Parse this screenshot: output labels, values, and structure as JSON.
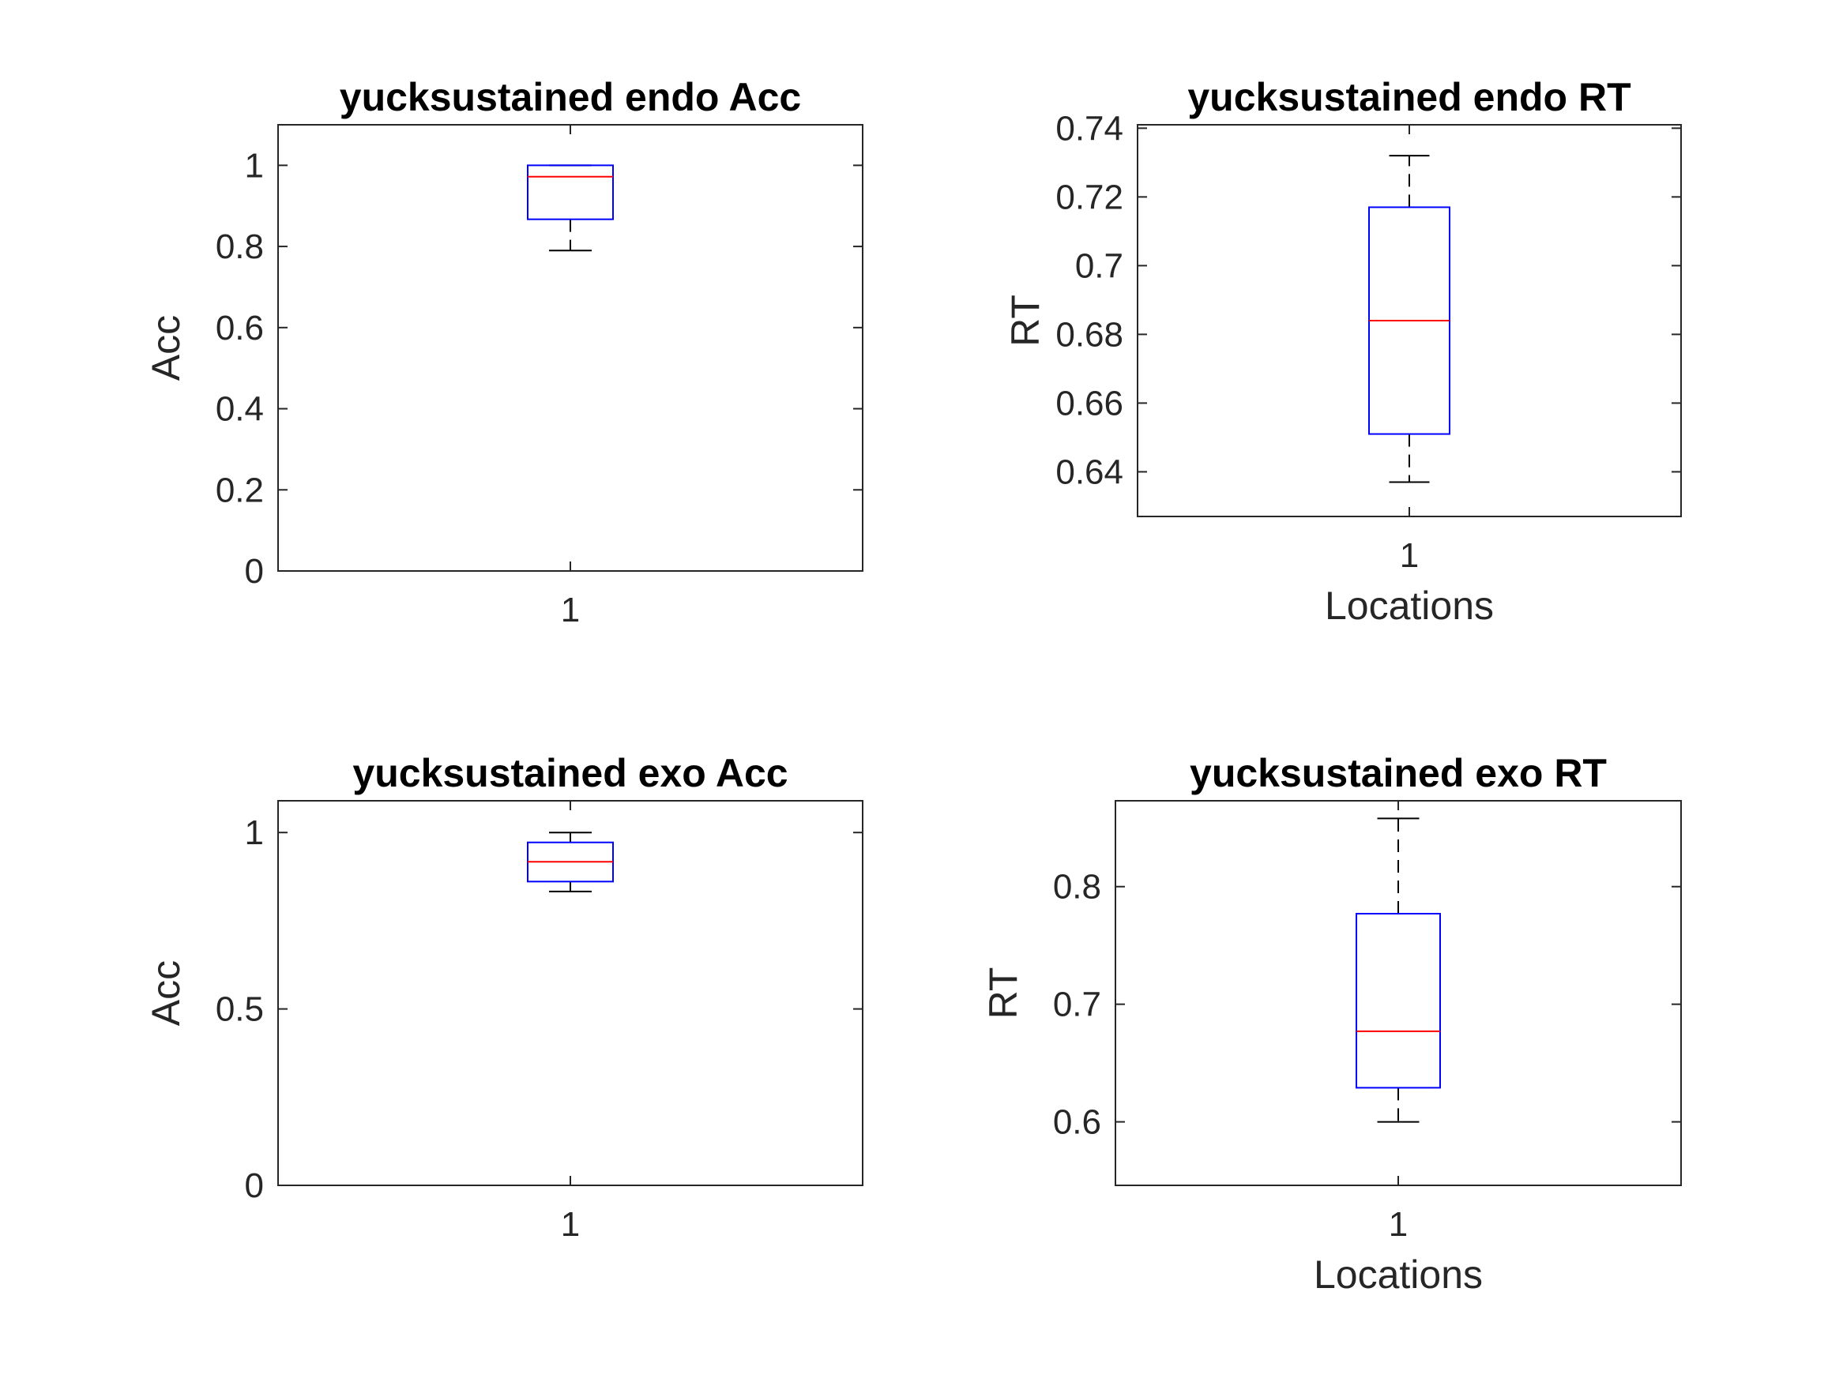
{
  "chart_data": [
    {
      "type": "box",
      "title": "yucksustained endo Acc",
      "xlabel": "",
      "ylabel": "Acc",
      "categories": [
        "1"
      ],
      "ylim": [
        0,
        1.1
      ],
      "yticks": [
        "0",
        "0.2",
        "0.4",
        "0.6",
        "0.8",
        "1"
      ],
      "box": {
        "whisker_low": 0.79,
        "q1": 0.867,
        "median": 0.972,
        "q3": 1.0,
        "whisker_high": 1.0
      }
    },
    {
      "type": "box",
      "title": "yucksustained endo RT",
      "xlabel": "Locations",
      "ylabel": "RT",
      "categories": [
        "1"
      ],
      "ylim": [
        0.627,
        0.741
      ],
      "yticks": [
        "0.64",
        "0.66",
        "0.68",
        "0.7",
        "0.72",
        "0.74"
      ],
      "box": {
        "whisker_low": 0.637,
        "q1": 0.651,
        "median": 0.684,
        "q3": 0.717,
        "whisker_high": 0.732
      }
    },
    {
      "type": "box",
      "title": "yucksustained exo Acc",
      "xlabel": "",
      "ylabel": "Acc",
      "categories": [
        "1"
      ],
      "ylim": [
        0,
        1.09
      ],
      "yticks": [
        "0",
        "0.5",
        "1"
      ],
      "box": {
        "whisker_low": 0.833,
        "q1": 0.861,
        "median": 0.917,
        "q3": 0.972,
        "whisker_high": 1.0
      }
    },
    {
      "type": "box",
      "title": "yucksustained exo RT",
      "xlabel": "Locations",
      "ylabel": "RT",
      "categories": [
        "1"
      ],
      "ylim": [
        0.546,
        0.873
      ],
      "yticks": [
        "0.6",
        "0.7",
        "0.8"
      ],
      "box": {
        "whisker_low": 0.6,
        "q1": 0.629,
        "median": 0.677,
        "q3": 0.777,
        "whisker_high": 0.858
      }
    }
  ],
  "colors": {
    "box": "#0000ff",
    "median": "#ff0000",
    "whisker": "#000000",
    "axes": "#262626"
  }
}
